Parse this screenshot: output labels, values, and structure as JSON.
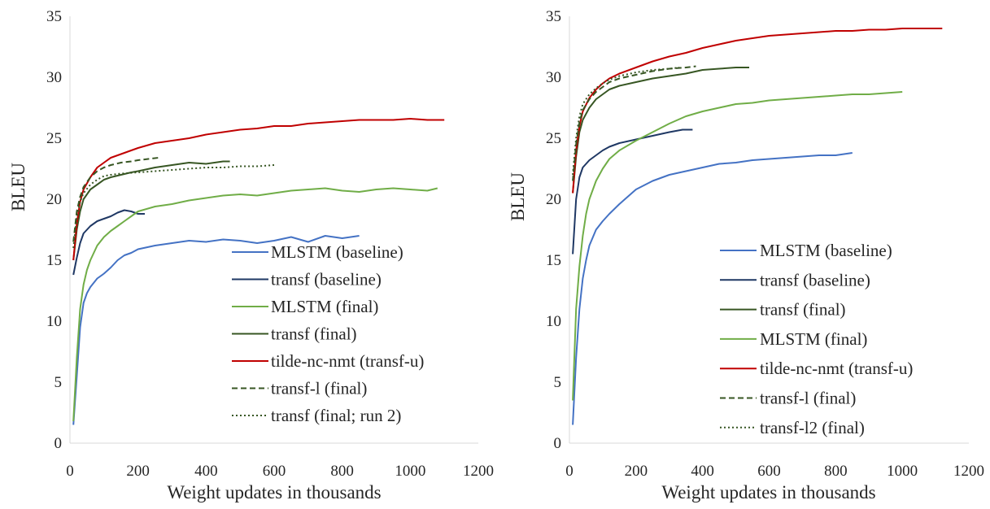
{
  "chart_data": [
    {
      "type": "line",
      "xlabel": "Weight updates in thousands",
      "ylabel": "BLEU",
      "xlim": [
        0,
        1200
      ],
      "ylim": [
        0,
        35
      ],
      "xticks": [
        "0",
        "200",
        "400",
        "600",
        "800",
        "1000",
        "1200"
      ],
      "yticks": [
        "0",
        "5",
        "10",
        "15",
        "20",
        "25",
        "30",
        "35"
      ],
      "grid": false,
      "legend_position": "bottom-right",
      "series": [
        {
          "name": "MLSTM (baseline)",
          "color": "#4472c4",
          "dash": "solid",
          "x": [
            10,
            20,
            30,
            40,
            50,
            60,
            80,
            100,
            120,
            140,
            160,
            180,
            200,
            250,
            300,
            350,
            400,
            450,
            500,
            550,
            600,
            650,
            700,
            750,
            800,
            850
          ],
          "y": [
            1.5,
            5.5,
            9.5,
            11.5,
            12.3,
            12.8,
            13.5,
            13.9,
            14.4,
            15.0,
            15.4,
            15.6,
            15.9,
            16.2,
            16.4,
            16.6,
            16.5,
            16.7,
            16.6,
            16.4,
            16.6,
            16.9,
            16.5,
            17.0,
            16.8,
            17.0
          ]
        },
        {
          "name": "transf (baseline)",
          "color": "#1f3864",
          "dash": "solid",
          "x": [
            10,
            20,
            30,
            40,
            60,
            80,
            100,
            120,
            140,
            160,
            180,
            200,
            220
          ],
          "y": [
            13.8,
            15.2,
            16.4,
            17.2,
            17.8,
            18.2,
            18.4,
            18.6,
            18.9,
            19.1,
            19.0,
            18.8,
            18.8
          ]
        },
        {
          "name": "MLSTM (final)",
          "color": "#70ad47",
          "dash": "solid",
          "x": [
            10,
            20,
            30,
            40,
            50,
            60,
            80,
            100,
            120,
            140,
            160,
            180,
            200,
            250,
            300,
            350,
            400,
            450,
            500,
            550,
            600,
            650,
            700,
            750,
            800,
            850,
            900,
            950,
            1000,
            1050,
            1080
          ],
          "y": [
            1.8,
            7.0,
            11.0,
            13.0,
            14.2,
            15.0,
            16.2,
            16.9,
            17.4,
            17.8,
            18.2,
            18.6,
            19.0,
            19.4,
            19.6,
            19.9,
            20.1,
            20.3,
            20.4,
            20.3,
            20.5,
            20.7,
            20.8,
            20.9,
            20.7,
            20.6,
            20.8,
            20.9,
            20.8,
            20.7,
            20.9
          ]
        },
        {
          "name": "transf (final)",
          "color": "#375623",
          "dash": "solid",
          "x": [
            10,
            20,
            30,
            40,
            60,
            80,
            100,
            120,
            150,
            180,
            200,
            250,
            300,
            350,
            400,
            450,
            470
          ],
          "y": [
            15.0,
            17.5,
            19.0,
            20.0,
            20.8,
            21.2,
            21.6,
            21.8,
            22.0,
            22.2,
            22.3,
            22.6,
            22.8,
            23.0,
            22.9,
            23.1,
            23.1
          ]
        },
        {
          "name": "tilde-nc-nmt (transf-u)",
          "color": "#c00000",
          "dash": "solid",
          "x": [
            10,
            20,
            30,
            40,
            60,
            80,
            100,
            120,
            150,
            180,
            200,
            250,
            300,
            350,
            400,
            450,
            500,
            550,
            600,
            650,
            700,
            750,
            800,
            850,
            900,
            950,
            1000,
            1050,
            1100
          ],
          "y": [
            15.0,
            18.0,
            19.8,
            20.8,
            21.8,
            22.6,
            23.0,
            23.4,
            23.7,
            24.0,
            24.2,
            24.6,
            24.8,
            25.0,
            25.3,
            25.5,
            25.7,
            25.8,
            26.0,
            26.0,
            26.2,
            26.3,
            26.4,
            26.5,
            26.5,
            26.5,
            26.6,
            26.5,
            26.5
          ]
        },
        {
          "name": "transf-l (final)",
          "color": "#375623",
          "dash": "dashed",
          "x": [
            10,
            20,
            30,
            40,
            60,
            80,
            100,
            120,
            150,
            180,
            200,
            230,
            260
          ],
          "y": [
            16.5,
            19.0,
            20.2,
            21.0,
            21.8,
            22.3,
            22.6,
            22.8,
            23.0,
            23.1,
            23.2,
            23.3,
            23.4
          ]
        },
        {
          "name": "transf (final; run 2)",
          "color": "#375623",
          "dash": "dotted",
          "x": [
            10,
            20,
            30,
            40,
            60,
            80,
            100,
            120,
            150,
            200,
            250,
            300,
            350,
            400,
            450,
            500,
            550,
            600
          ],
          "y": [
            16.0,
            18.5,
            19.8,
            20.5,
            21.2,
            21.6,
            21.9,
            22.0,
            22.1,
            22.2,
            22.3,
            22.4,
            22.5,
            22.6,
            22.6,
            22.7,
            22.7,
            22.8
          ]
        }
      ]
    },
    {
      "type": "line",
      "xlabel": "Weight updates in thousands",
      "ylabel": "BLEU",
      "xlim": [
        0,
        1200
      ],
      "ylim": [
        0,
        35
      ],
      "xticks": [
        "0",
        "200",
        "400",
        "600",
        "800",
        "1000",
        "1200"
      ],
      "yticks": [
        "0",
        "5",
        "10",
        "15",
        "20",
        "25",
        "30",
        "35"
      ],
      "grid": false,
      "legend_position": "bottom-right",
      "series": [
        {
          "name": "MLSTM (baseline)",
          "color": "#4472c4",
          "dash": "solid",
          "x": [
            10,
            20,
            30,
            40,
            50,
            60,
            80,
            100,
            120,
            150,
            200,
            250,
            300,
            350,
            400,
            450,
            500,
            550,
            600,
            650,
            700,
            750,
            800,
            850
          ],
          "y": [
            1.5,
            7.0,
            11.0,
            13.5,
            15.0,
            16.2,
            17.5,
            18.2,
            18.8,
            19.6,
            20.8,
            21.5,
            22.0,
            22.3,
            22.6,
            22.9,
            23.0,
            23.2,
            23.3,
            23.4,
            23.5,
            23.6,
            23.6,
            23.8
          ]
        },
        {
          "name": "transf (baseline)",
          "color": "#1f3864",
          "dash": "solid",
          "x": [
            10,
            20,
            30,
            40,
            60,
            80,
            100,
            120,
            150,
            200,
            250,
            300,
            340,
            370
          ],
          "y": [
            15.5,
            20.0,
            21.8,
            22.6,
            23.2,
            23.6,
            24.0,
            24.3,
            24.6,
            24.9,
            25.2,
            25.5,
            25.7,
            25.7
          ]
        },
        {
          "name": "transf (final)",
          "color": "#375623",
          "dash": "solid",
          "x": [
            10,
            20,
            30,
            40,
            60,
            80,
            100,
            120,
            150,
            200,
            250,
            300,
            350,
            400,
            450,
            500,
            540
          ],
          "y": [
            20.5,
            23.5,
            25.5,
            26.5,
            27.5,
            28.2,
            28.6,
            29.0,
            29.3,
            29.6,
            29.9,
            30.1,
            30.3,
            30.6,
            30.7,
            30.8,
            30.8
          ]
        },
        {
          "name": "MLSTM (final)",
          "color": "#70ad47",
          "dash": "solid",
          "x": [
            10,
            20,
            30,
            40,
            50,
            60,
            80,
            100,
            120,
            150,
            200,
            250,
            300,
            350,
            400,
            450,
            500,
            550,
            600,
            650,
            700,
            750,
            800,
            850,
            900,
            950,
            1000
          ],
          "y": [
            3.5,
            11.0,
            14.5,
            17.0,
            18.8,
            20.0,
            21.5,
            22.5,
            23.3,
            24.0,
            24.8,
            25.5,
            26.2,
            26.8,
            27.2,
            27.5,
            27.8,
            27.9,
            28.1,
            28.2,
            28.3,
            28.4,
            28.5,
            28.6,
            28.6,
            28.7,
            28.8
          ]
        },
        {
          "name": "tilde-nc-nmt (transf-u)",
          "color": "#c00000",
          "dash": "solid",
          "x": [
            10,
            20,
            30,
            40,
            60,
            80,
            100,
            120,
            150,
            200,
            250,
            300,
            350,
            400,
            450,
            500,
            550,
            600,
            650,
            700,
            750,
            800,
            850,
            900,
            950,
            1000,
            1050,
            1100,
            1120
          ],
          "y": [
            20.5,
            24.0,
            26.0,
            27.2,
            28.3,
            29.0,
            29.5,
            29.9,
            30.3,
            30.8,
            31.3,
            31.7,
            32.0,
            32.4,
            32.7,
            33.0,
            33.2,
            33.4,
            33.5,
            33.6,
            33.7,
            33.8,
            33.8,
            33.9,
            33.9,
            34.0,
            34.0,
            34.0,
            34.0
          ]
        },
        {
          "name": "transf-l (final)",
          "color": "#375623",
          "dash": "dashed",
          "x": [
            10,
            20,
            30,
            40,
            60,
            80,
            100,
            120,
            150,
            200,
            250,
            300,
            350,
            380
          ],
          "y": [
            21.5,
            24.5,
            26.3,
            27.3,
            28.2,
            28.8,
            29.2,
            29.6,
            29.9,
            30.2,
            30.5,
            30.7,
            30.8,
            30.9
          ]
        },
        {
          "name": "transf-l2 (final)",
          "color": "#375623",
          "dash": "dotted",
          "x": [
            10,
            20,
            30,
            40,
            60,
            80,
            100,
            120,
            150,
            200,
            250,
            300,
            330
          ],
          "y": [
            22.0,
            25.0,
            26.8,
            27.8,
            28.6,
            29.1,
            29.5,
            29.8,
            30.1,
            30.4,
            30.6,
            30.7,
            30.8
          ]
        }
      ]
    }
  ]
}
